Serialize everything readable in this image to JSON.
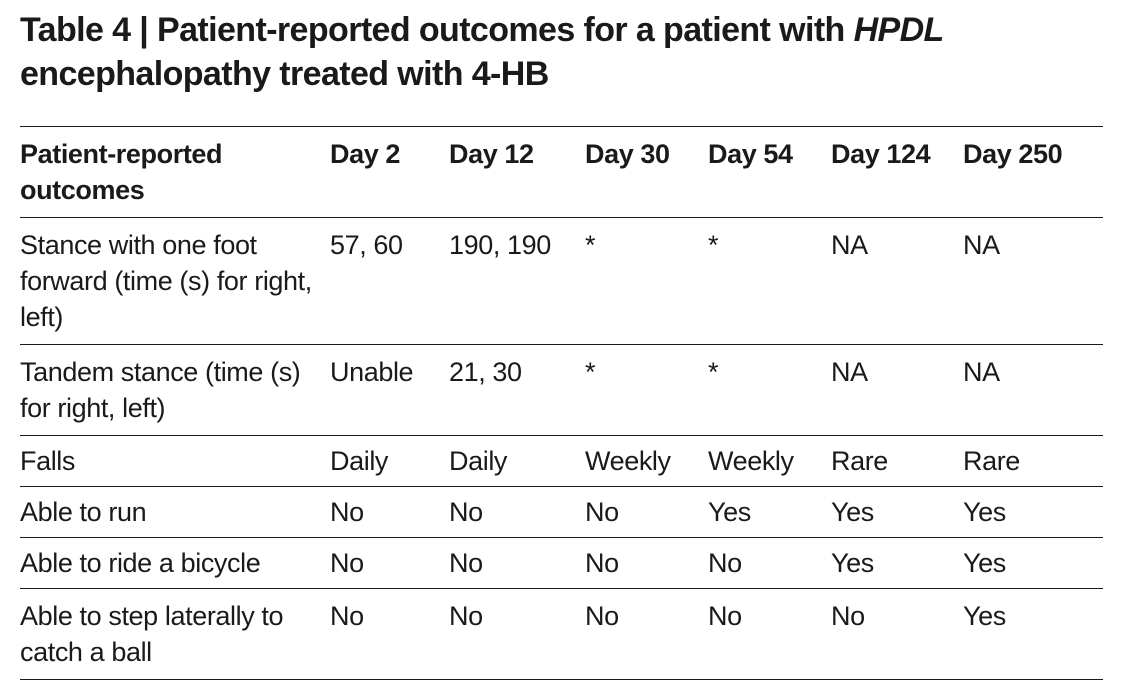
{
  "title": {
    "prefix": "Table 4 | Patient-reported outcomes for a patient with ",
    "italic": "HPDL",
    "suffix": " encephalopathy treated with 4-HB"
  },
  "table": {
    "headers": [
      "Patient-reported outcomes",
      "Day 2",
      "Day 12",
      "Day 30",
      "Day 54",
      "Day 124",
      "Day 250"
    ],
    "rows": [
      [
        "Stance with one foot forward (time (s) for right, left)",
        "57, 60",
        "190, 190",
        "*",
        "*",
        "NA",
        "NA"
      ],
      [
        "Tandem stance (time (s) for right, left)",
        "Unable",
        "21, 30",
        "*",
        "*",
        "NA",
        "NA"
      ],
      [
        "Falls",
        "Daily",
        "Daily",
        "Weekly",
        "Weekly",
        "Rare",
        "Rare"
      ],
      [
        "Able to run",
        "No",
        "No",
        "No",
        "Yes",
        "Yes",
        "Yes"
      ],
      [
        "Able to ride a bicycle",
        "No",
        "No",
        "No",
        "No",
        "Yes",
        "Yes"
      ],
      [
        "Able to step laterally to catch a ball",
        "No",
        "No",
        "No",
        "No",
        "No",
        "Yes"
      ]
    ]
  }
}
